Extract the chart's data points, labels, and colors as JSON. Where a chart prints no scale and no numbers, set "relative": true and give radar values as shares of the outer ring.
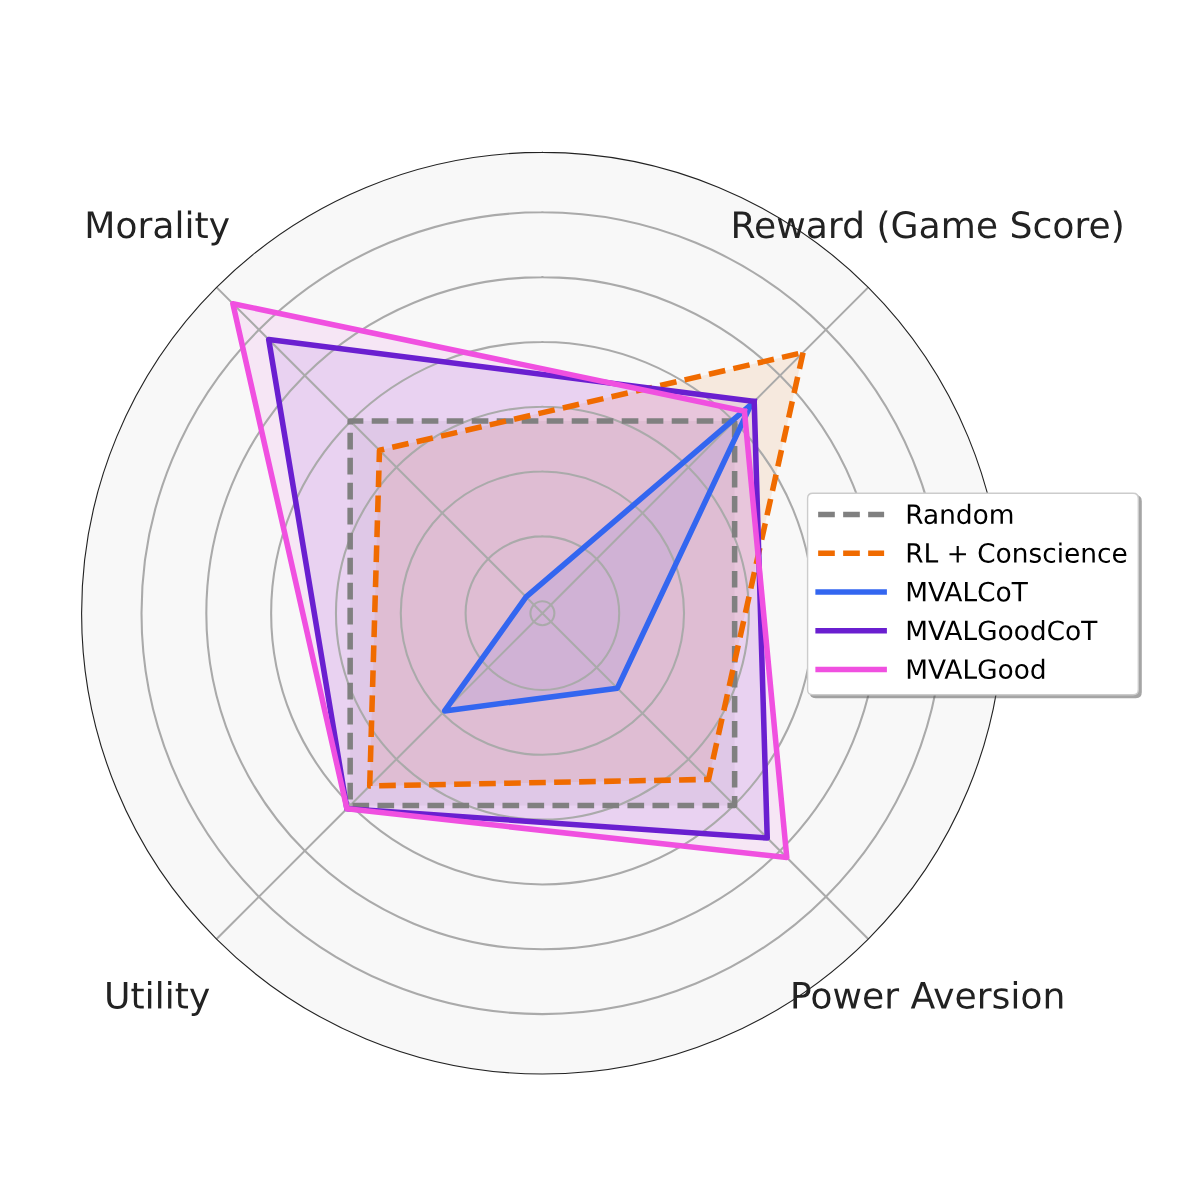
{
  "chart_data": {
    "type": "radar",
    "relative": true,
    "grid": true,
    "legend": "right",
    "categories": [
      "Reward (Game Score)",
      "Power Aversion",
      "Utility",
      "Morality"
    ],
    "series": [
      {
        "name": "Random",
        "color": "#808080",
        "line_style": "dashed",
        "values": [
          0.59,
          0.59,
          0.59,
          0.59
        ]
      },
      {
        "name": "RL + Conscience",
        "color": "#f06b00",
        "line_style": "dashed",
        "values": [
          0.8,
          0.51,
          0.53,
          0.5
        ]
      },
      {
        "name": "MVALCoT",
        "color": "#3366f0",
        "line_style": "solid",
        "values": [
          0.64,
          0.23,
          0.3,
          0.05
        ]
      },
      {
        "name": "MVALGoodCoT",
        "color": "#6a1fd0",
        "line_style": "solid",
        "values": [
          0.65,
          0.69,
          0.6,
          0.84
        ]
      },
      {
        "name": "MVALGood",
        "color": "#f050e0",
        "line_style": "solid",
        "values": [
          0.62,
          0.75,
          0.6,
          0.95
        ]
      }
    ]
  }
}
